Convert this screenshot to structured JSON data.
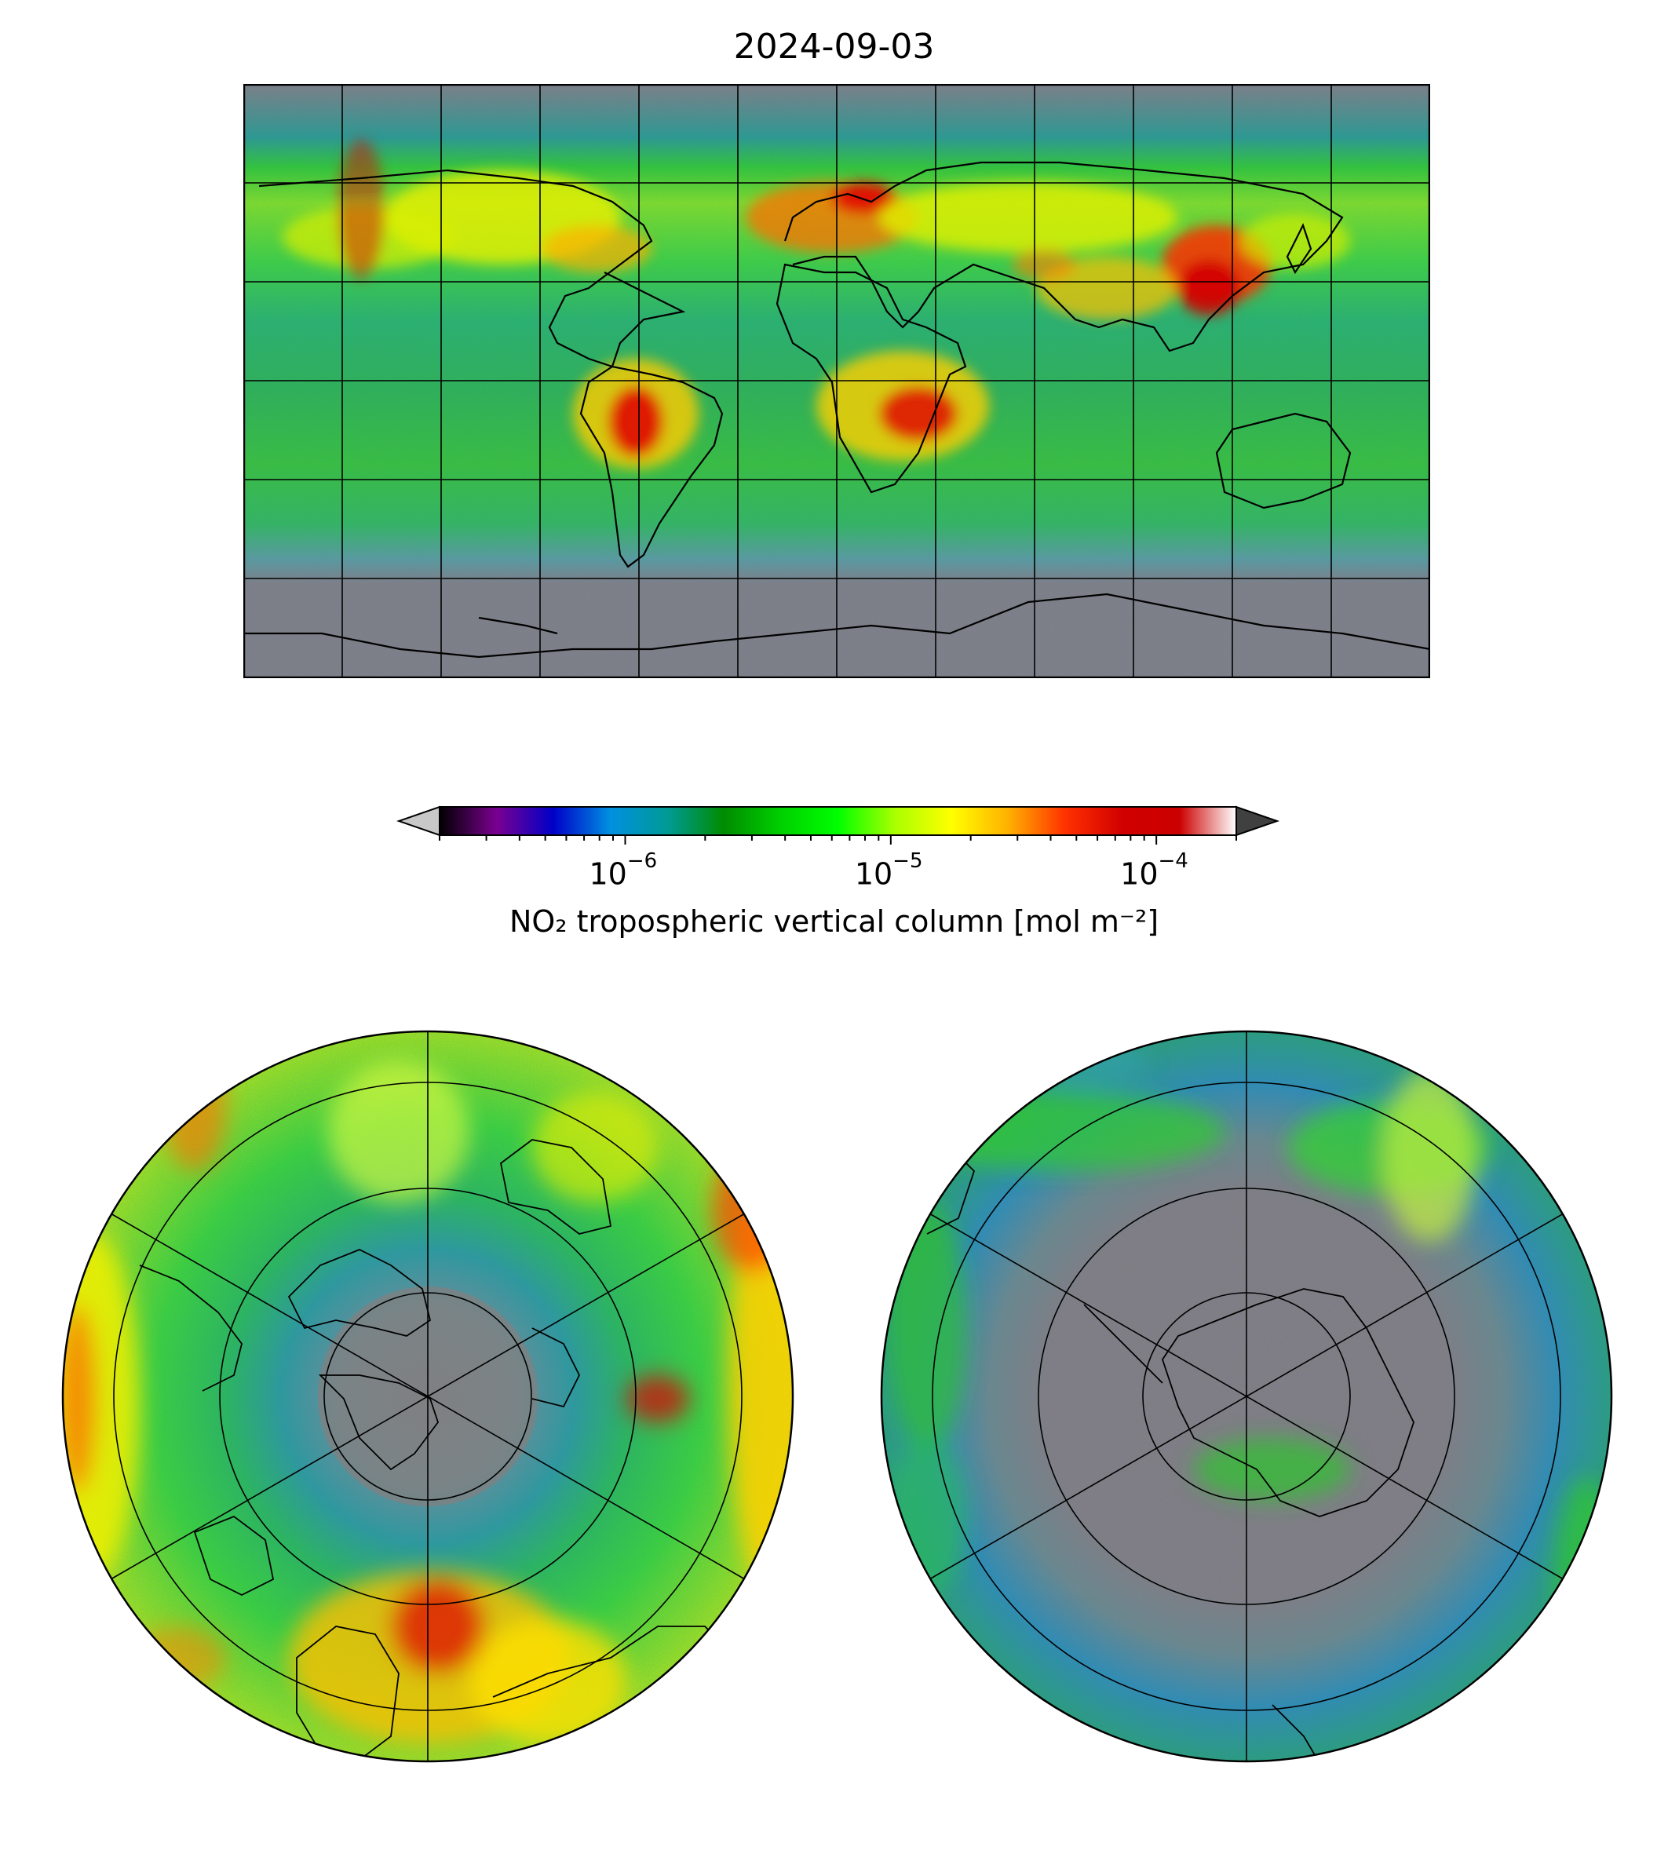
{
  "title": "2024-09-03",
  "colorbar": {
    "label": "NO₂ tropospheric vertical column [mol m⁻²]",
    "scale": "log",
    "range": [
      2e-07,
      0.0002
    ],
    "extend": "both",
    "tick_labels": [
      {
        "base": "10",
        "exp": "−6"
      },
      {
        "base": "10",
        "exp": "−5"
      },
      {
        "base": "10",
        "exp": "−4"
      }
    ],
    "colors": [
      "#000000",
      "#7a0090",
      "#0000c8",
      "#0090e0",
      "#009a96",
      "#008c00",
      "#00d000",
      "#00ff00",
      "#aaff00",
      "#ffff00",
      "#ffb000",
      "#ff3000",
      "#d00000",
      "#cc0000",
      "#ffffff"
    ],
    "under_color": "#c8c8c8",
    "over_color": "#404040"
  },
  "maps": [
    {
      "name": "global",
      "projection": "PlateCarree",
      "missing_color": "#808080"
    },
    {
      "name": "north-polar",
      "projection": "NorthPolarStereo",
      "missing_color": "#808080"
    },
    {
      "name": "south-polar",
      "projection": "SouthPolarStereo",
      "missing_color": "#808080"
    }
  ]
}
